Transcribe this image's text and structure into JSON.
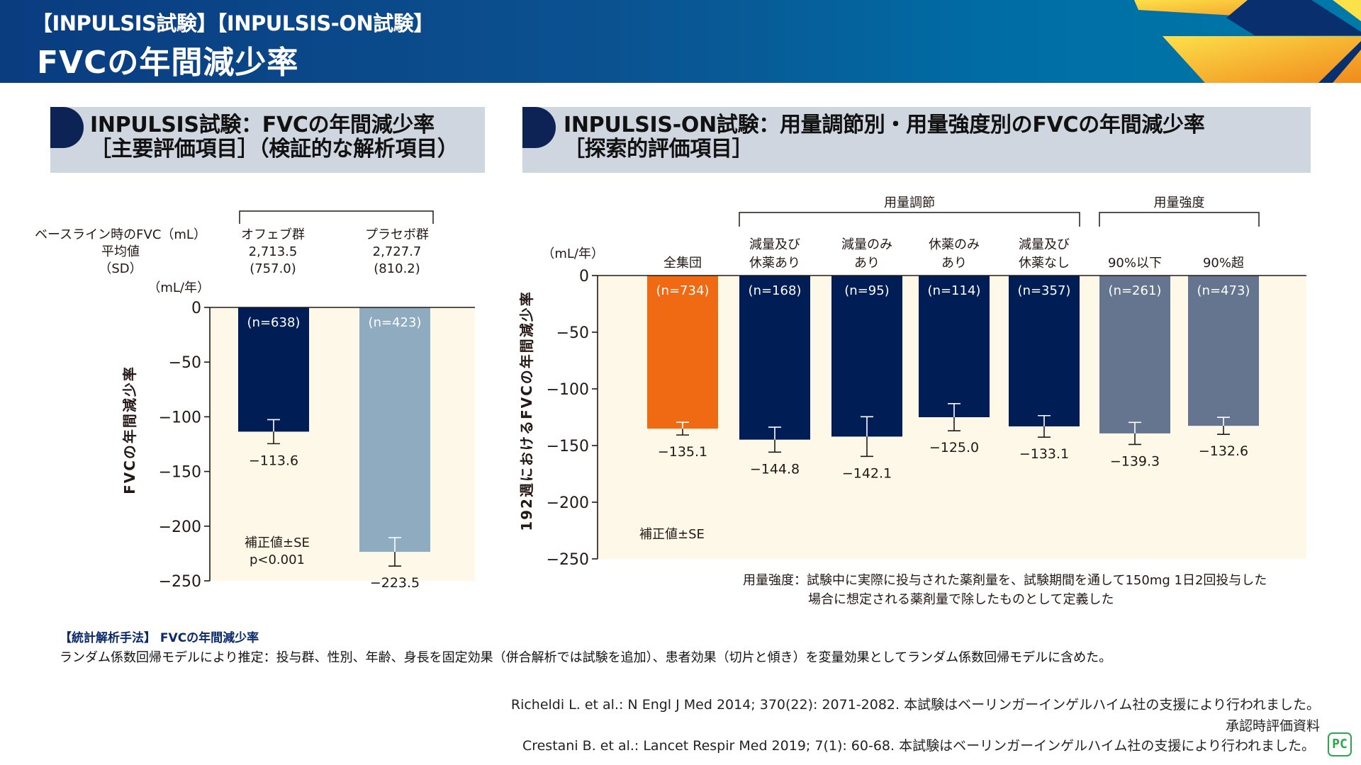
{
  "header": {
    "subtitle": "【INPULSIS試験】【INPULSIS-ON試験】",
    "title": "FVCの年間減少率"
  },
  "colors": {
    "header_blue": "#0b5291",
    "accent_navy": "#0e2355",
    "section_bg": "#d0d6e0",
    "plot_bg": "#fef8e9",
    "orange": "#ef6a12",
    "navy_bar": "#001e55",
    "light_blue_bar": "#8fabc0",
    "slate_bar": "#66758f",
    "pc_green": "#2aa84a"
  },
  "left_section": {
    "line1": "INPULSIS試験：FVCの年間減少率",
    "line2": "［主要評価項目］（検証的な解析項目）"
  },
  "right_section": {
    "line1": "INPULSIS-ON試験：用量調節別・用量強度別のFVCの年間減少率",
    "line2": "［探索的評価項目］"
  },
  "left_baseline": {
    "row_label_1": "ベースライン時のFVC（mL）",
    "row_label_2": "平均値",
    "row_label_3": "（SD）",
    "groups": [
      {
        "name": "オフェブ群",
        "mean": "2,713.5",
        "sd": "(757.0)"
      },
      {
        "name": "プラセボ群",
        "mean": "2,727.7",
        "sd": "(810.2)"
      }
    ]
  },
  "right_notes": {
    "definition_line1": "用量強度：試験中に実際に投与された薬剤量を、試験期間を通して150mg 1日2回投与した",
    "definition_line2": "場合に想定される薬剤量で除したものとして定義した"
  },
  "footer": {
    "method_heading": "【統計解析手法】 FVCの年間減少率",
    "method_body": "ランダム係数回帰モデルにより推定：投与群、性別、年齢、身長を固定効果（併合解析では試験を追加）、患者効果（切片と傾き）を変量効果としてランダム係数回帰モデルに含めた。",
    "ref1": "Richeldi L. et al.: N Engl J Med 2014; 370(22): 2071-2082. 本試験はベーリンガーインゲルハイム社の支援により行われました。",
    "approval": "承認時評価資料",
    "ref2": "Crestani B. et al.: Lancet Respir Med 2019; 7(1): 60-68. 本試験はベーリンガーインゲルハイム社の支援により行われました。",
    "badge": "PC"
  },
  "chart_data": [
    {
      "type": "bar",
      "title": "INPULSIS試験：FVCの年間減少率",
      "unit_label": "（mL/年）",
      "ylabel": "FVCの年間減少率",
      "ylim": [
        -250,
        0
      ],
      "yticks": [
        0,
        -50,
        -100,
        -150,
        -200,
        -250
      ],
      "ytick_labels": [
        "0",
        "−50",
        "−100",
        "−150",
        "−200",
        "−250"
      ],
      "categories": [
        "オフェブ群",
        "プラセボ群"
      ],
      "n_labels": [
        "(n=638)",
        "(n=423)"
      ],
      "values": [
        -113.6,
        -223.5
      ],
      "value_labels": [
        "−113.6",
        "−223.5"
      ],
      "se": [
        11,
        13
      ],
      "bar_colors": [
        "#001e55",
        "#8fabc0"
      ],
      "annotation_1": "補正値±SE",
      "annotation_2": "p<0.001",
      "grid": false
    },
    {
      "type": "bar",
      "title": "INPULSIS-ON試験：用量調節別・用量強度別のFVCの年間減少率",
      "unit_label": "（mL/年）",
      "ylabel": "192週におけるFVCの年間減少率",
      "ylim": [
        -250,
        0
      ],
      "yticks": [
        0,
        -50,
        -100,
        -150,
        -200,
        -250
      ],
      "ytick_labels": [
        "0",
        "−50",
        "−100",
        "−150",
        "−200",
        "−250"
      ],
      "group_brackets": [
        {
          "label": "用量調節",
          "from": 1,
          "to": 4
        },
        {
          "label": "用量強度",
          "from": 5,
          "to": 6
        }
      ],
      "categories": [
        [
          "全集団"
        ],
        [
          "減量及び",
          "休薬あり"
        ],
        [
          "減量のみ",
          "あり"
        ],
        [
          "休薬のみ",
          "あり"
        ],
        [
          "減量及び",
          "休薬なし"
        ],
        [
          "90%以下"
        ],
        [
          "90%超"
        ]
      ],
      "n_labels": [
        "(n=734)",
        "(n=168)",
        "(n=95)",
        "(n=114)",
        "(n=357)",
        "(n=261)",
        "(n=473)"
      ],
      "values": [
        -135.1,
        -144.8,
        -142.1,
        -125.0,
        -133.1,
        -139.3,
        -132.6
      ],
      "value_labels": [
        "−135.1",
        "−144.8",
        "−142.1",
        "−125.0",
        "−133.1",
        "−139.3",
        "−132.6"
      ],
      "se": [
        5.6,
        11,
        17.5,
        12,
        9.5,
        9.7,
        7.5
      ],
      "bar_colors": [
        "#ef6a12",
        "#001e55",
        "#001e55",
        "#001e55",
        "#001e55",
        "#66758f",
        "#66758f"
      ],
      "annotation_1": "補正値±SE",
      "grid": false
    }
  ]
}
